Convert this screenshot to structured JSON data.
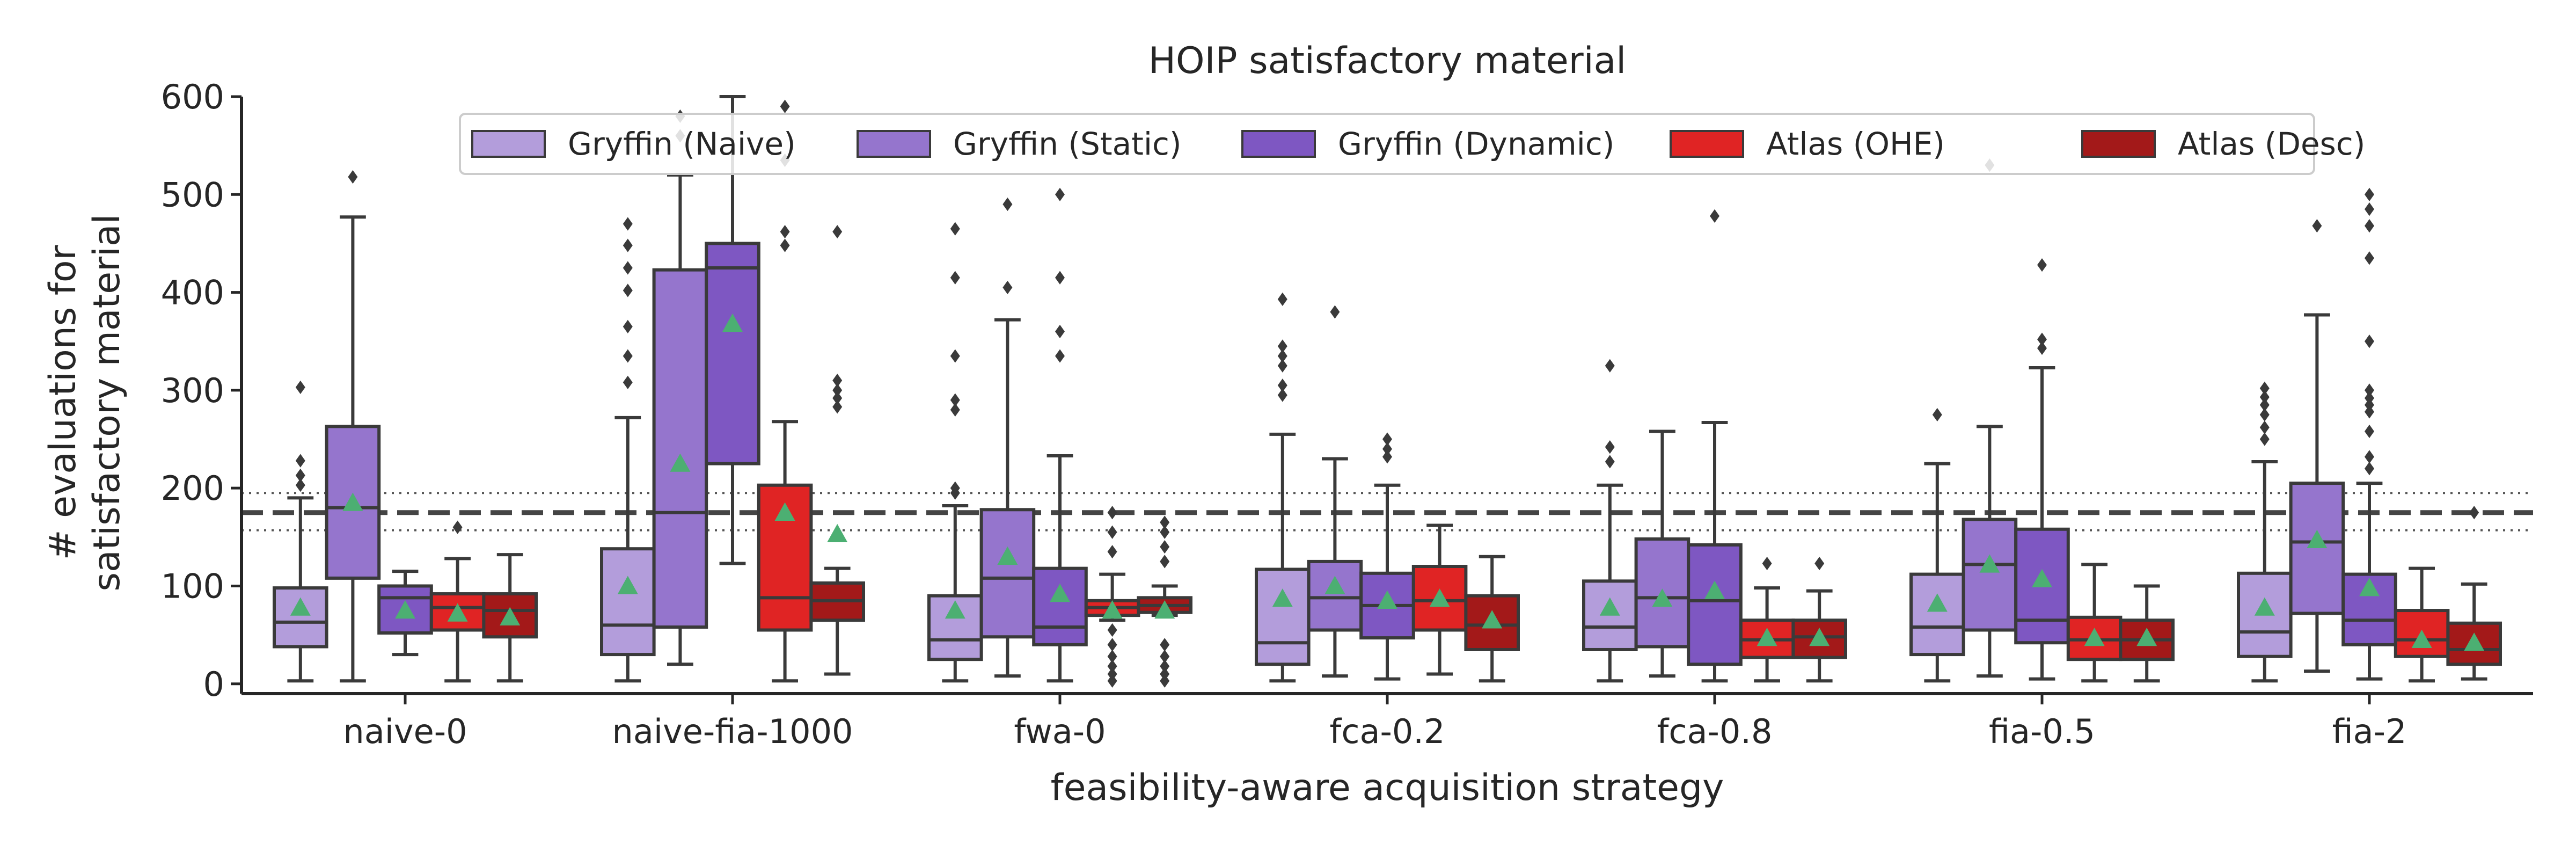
{
  "chart_data": {
    "type": "box",
    "title": "HOIP satisfactory material",
    "xlabel": "feasibility-aware acquisition strategy",
    "ylabel_lines": [
      "# evaluations for",
      "satisfactory material"
    ],
    "ylim": [
      -10,
      600
    ],
    "yticks": [
      0,
      100,
      200,
      300,
      400,
      500,
      600
    ],
    "categories": [
      "naive-0",
      "naive-fia-1000",
      "fwa-0",
      "fca-0.2",
      "fca-0.8",
      "fia-0.5",
      "fia-2"
    ],
    "legend_position": "top-center",
    "grid": false,
    "reference_lines": [
      {
        "y": 175,
        "style": "dashed"
      },
      {
        "y": 195,
        "style": "dotted"
      },
      {
        "y": 157,
        "style": "dotted"
      }
    ],
    "series": [
      {
        "name": "Gryffin (Naive)",
        "color": "#b39ddb",
        "boxes": [
          {
            "whislo": 3,
            "q1": 38,
            "med": 63,
            "q3": 98,
            "whishi": 190,
            "mean": 78,
            "fliers": [
              203,
              213,
              228,
              303
            ]
          },
          {
            "whislo": 3,
            "q1": 30,
            "med": 60,
            "q3": 138,
            "whishi": 272,
            "mean": 100,
            "fliers": [
              308,
              335,
              365,
              402,
              425,
              448,
              470
            ]
          },
          {
            "whislo": 3,
            "q1": 25,
            "med": 45,
            "q3": 90,
            "whishi": 182,
            "mean": 75,
            "fliers": [
              195,
              200,
              280,
              290,
              335,
              415,
              465
            ]
          },
          {
            "whislo": 3,
            "q1": 20,
            "med": 42,
            "q3": 117,
            "whishi": 255,
            "mean": 87,
            "fliers": [
              295,
              305,
              325,
              335,
              345,
              393
            ]
          },
          {
            "whislo": 3,
            "q1": 35,
            "med": 58,
            "q3": 105,
            "whishi": 203,
            "mean": 78,
            "fliers": [
              227,
              242,
              325
            ]
          },
          {
            "whislo": 3,
            "q1": 30,
            "med": 58,
            "q3": 112,
            "whishi": 225,
            "mean": 82,
            "fliers": [
              275
            ]
          },
          {
            "whislo": 3,
            "q1": 28,
            "med": 53,
            "q3": 113,
            "whishi": 227,
            "mean": 78,
            "fliers": [
              250,
              262,
              275,
              285,
              293,
              302
            ]
          }
        ]
      },
      {
        "name": "Gryffin (Static)",
        "color": "#9575cd",
        "boxes": [
          {
            "whislo": 3,
            "q1": 108,
            "med": 180,
            "q3": 263,
            "whishi": 477,
            "mean": 185,
            "fliers": [
              518
            ]
          },
          {
            "whislo": 20,
            "q1": 58,
            "med": 175,
            "q3": 423,
            "whishi": 520,
            "mean": 225,
            "fliers": [
              560,
              580
            ]
          },
          {
            "whislo": 8,
            "q1": 48,
            "med": 108,
            "q3": 178,
            "whishi": 372,
            "mean": 130,
            "fliers": [
              405,
              490
            ]
          },
          {
            "whislo": 8,
            "q1": 55,
            "med": 88,
            "q3": 125,
            "whishi": 230,
            "mean": 100,
            "fliers": [
              380
            ]
          },
          {
            "whislo": 8,
            "q1": 38,
            "med": 88,
            "q3": 148,
            "whishi": 258,
            "mean": 87,
            "fliers": []
          },
          {
            "whislo": 8,
            "q1": 55,
            "med": 122,
            "q3": 168,
            "whishi": 263,
            "mean": 122,
            "fliers": [
              530
            ]
          },
          {
            "whislo": 13,
            "q1": 72,
            "med": 145,
            "q3": 205,
            "whishi": 377,
            "mean": 147,
            "fliers": [
              468
            ]
          }
        ]
      },
      {
        "name": "Gryffin (Dynamic)",
        "color": "#7e57c2",
        "boxes": [
          {
            "whislo": 30,
            "q1": 52,
            "med": 88,
            "q3": 100,
            "whishi": 115,
            "mean": 75,
            "fliers": []
          },
          {
            "whislo": 123,
            "q1": 225,
            "med": 425,
            "q3": 450,
            "whishi": 600,
            "mean": 368,
            "fliers": []
          },
          {
            "whislo": 3,
            "q1": 40,
            "med": 58,
            "q3": 118,
            "whishi": 233,
            "mean": 92,
            "fliers": [
              335,
              360,
              415,
              500
            ]
          },
          {
            "whislo": 5,
            "q1": 47,
            "med": 80,
            "q3": 113,
            "whishi": 203,
            "mean": 85,
            "fliers": [
              232,
              240,
              250
            ]
          },
          {
            "whislo": 3,
            "q1": 20,
            "med": 85,
            "q3": 142,
            "whishi": 267,
            "mean": 95,
            "fliers": [
              478
            ]
          },
          {
            "whislo": 5,
            "q1": 42,
            "med": 65,
            "q3": 158,
            "whishi": 323,
            "mean": 107,
            "fliers": [
              343,
              352,
              428
            ]
          },
          {
            "whislo": 5,
            "q1": 40,
            "med": 65,
            "q3": 112,
            "whishi": 205,
            "mean": 98,
            "fliers": [
              220,
              232,
              258,
              278,
              285,
              292,
              300,
              350,
              435,
              468,
              485,
              500
            ]
          }
        ]
      },
      {
        "name": "Atlas (OHE)",
        "color": "#e02424",
        "boxes": [
          {
            "whislo": 3,
            "q1": 55,
            "med": 78,
            "q3": 92,
            "whishi": 128,
            "mean": 72,
            "fliers": [
              160
            ]
          },
          {
            "whislo": 3,
            "q1": 55,
            "med": 88,
            "q3": 203,
            "whishi": 268,
            "mean": 175,
            "fliers": [
              448,
              462,
              535,
              590
            ]
          },
          {
            "whislo": 65,
            "q1": 70,
            "med": 78,
            "q3": 85,
            "whishi": 112,
            "mean": 75,
            "fliers": [
              3,
              10,
              18,
              28,
              40,
              55,
              135,
              155,
              175
            ]
          },
          {
            "whislo": 10,
            "q1": 55,
            "med": 85,
            "q3": 120,
            "whishi": 162,
            "mean": 87,
            "fliers": []
          },
          {
            "whislo": 3,
            "q1": 27,
            "med": 45,
            "q3": 65,
            "whishi": 98,
            "mean": 47,
            "fliers": [
              123
            ]
          },
          {
            "whislo": 3,
            "q1": 25,
            "med": 45,
            "q3": 68,
            "whishi": 122,
            "mean": 47,
            "fliers": []
          },
          {
            "whislo": 3,
            "q1": 28,
            "med": 45,
            "q3": 75,
            "whishi": 118,
            "mean": 45,
            "fliers": []
          }
        ]
      },
      {
        "name": "Atlas (Desc)",
        "color": "#a31919",
        "boxes": [
          {
            "whislo": 3,
            "q1": 48,
            "med": 75,
            "q3": 92,
            "whishi": 132,
            "mean": 68,
            "fliers": []
          },
          {
            "whislo": 10,
            "q1": 65,
            "med": 85,
            "q3": 103,
            "whishi": 118,
            "mean": 153,
            "fliers": [
              283,
              292,
              300,
              310,
              462
            ]
          },
          {
            "whislo": 70,
            "q1": 73,
            "med": 80,
            "q3": 88,
            "whishi": 100,
            "mean": 75,
            "fliers": [
              3,
              10,
              18,
              28,
              40,
              125,
              140,
              155,
              165
            ]
          },
          {
            "whislo": 3,
            "q1": 35,
            "med": 60,
            "q3": 90,
            "whishi": 130,
            "mean": 65,
            "fliers": []
          },
          {
            "whislo": 3,
            "q1": 27,
            "med": 48,
            "q3": 65,
            "whishi": 95,
            "mean": 47,
            "fliers": [
              123
            ]
          },
          {
            "whislo": 3,
            "q1": 25,
            "med": 45,
            "q3": 65,
            "whishi": 100,
            "mean": 47,
            "fliers": []
          },
          {
            "whislo": 5,
            "q1": 20,
            "med": 35,
            "q3": 62,
            "whishi": 102,
            "mean": 42,
            "fliers": [
              175
            ]
          }
        ]
      }
    ]
  }
}
